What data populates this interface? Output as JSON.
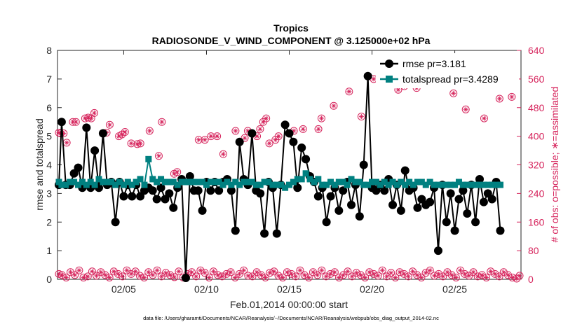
{
  "chart_data": {
    "type": "line",
    "title": "Tropics",
    "subtitle": "RADIOSONDE_V_WIND_COMPONENT @ 3.125000e+02 hPa",
    "xlabel": "Feb.01,2014 00:00:00 start",
    "ylabel_left": "rmse and totalspread",
    "ylabel_right": "# of obs: o=possible; ∗=assimilated",
    "footnote": "data file: /Users/gharamti/Documents/NCAR/Reanalysis/~/Documents/NCAR/Reanalysis/webpub/obs_diag_output_2014-02.nc",
    "xlim": [
      1.0,
      29.0
    ],
    "ylim_left": [
      0,
      8
    ],
    "ylim_right": [
      0,
      640
    ],
    "x_ticks": [
      5,
      10,
      15,
      20,
      25
    ],
    "x_tick_labels": [
      "02/05",
      "02/10",
      "02/15",
      "02/20",
      "02/25"
    ],
    "y_left_ticks": [
      "0",
      "1",
      "2",
      "3",
      "4",
      "5",
      "6",
      "7",
      "8"
    ],
    "y_right_ticks": [
      "0",
      "80",
      "160",
      "240",
      "320",
      "400",
      "480",
      "560",
      "640"
    ],
    "x_step_days": 0.25,
    "legend": [
      "rmse pr=3.181",
      "totalspread pr=3.4289"
    ],
    "legend_position": "top-right",
    "colors": {
      "rmse": "#000000",
      "totalspread": "#008080",
      "obs": "#d6245c",
      "axes": "#262626"
    },
    "series": [
      {
        "name": "rmse pr=3.181",
        "axis": "left",
        "values": [
          3.3,
          5.5,
          3.3,
          3.3,
          3.7,
          3.9,
          3.2,
          5.3,
          3.2,
          4.5,
          3.2,
          5.1,
          3.3,
          3.4,
          2.0,
          3.4,
          2.9,
          3.3,
          2.9,
          3.3,
          2.9,
          3.1,
          3.2,
          3.1,
          2.8,
          3.2,
          2.8,
          3.0,
          2.5,
          3.2,
          3.5,
          0.05,
          3.6,
          3.1,
          3.1,
          2.4,
          3.4,
          3.1,
          3.4,
          3.1,
          3.4,
          3.5,
          3.1,
          1.7,
          4.8,
          3.5,
          3.3,
          5.1,
          3.1,
          3.0,
          1.6,
          3.4,
          3.2,
          1.6,
          3.3,
          5.4,
          5.1,
          4.8,
          3.2,
          4.6,
          4.2,
          3.6,
          3.4,
          2.9,
          3.2,
          2.0,
          2.9,
          3.2,
          2.4,
          3.1,
          3.4,
          2.6,
          3.3,
          2.2,
          4.0,
          7.1,
          3.2,
          3.1,
          3.3,
          3.1,
          3.5,
          2.6,
          3.3,
          2.4,
          3.8,
          3.1,
          3.2,
          2.5,
          2.8,
          2.6,
          2.7,
          3.2,
          1.0,
          3.3,
          2.0,
          3.0,
          1.7,
          2.8,
          3.1,
          2.3,
          3.3,
          2.0,
          3.5,
          2.7,
          3.0,
          2.8,
          3.4,
          1.7
        ]
      },
      {
        "name": "totalspread pr=3.4289",
        "axis": "left",
        "values": [
          3.4,
          3.3,
          3.3,
          3.4,
          3.4,
          3.3,
          3.4,
          3.3,
          3.4,
          3.3,
          3.5,
          3.4,
          3.4,
          3.4,
          3.3,
          3.4,
          3.3,
          3.4,
          3.3,
          3.4,
          3.5,
          3.3,
          4.2,
          3.5,
          3.4,
          3.5,
          3.4,
          3.4,
          3.4,
          3.3,
          3.4,
          3.4,
          3.4,
          3.4,
          3.4,
          3.4,
          3.3,
          3.4,
          3.4,
          3.4,
          3.3,
          3.4,
          3.3,
          3.4,
          3.3,
          3.4,
          3.4,
          3.4,
          3.3,
          3.3,
          3.4,
          3.4,
          3.3,
          3.3,
          3.3,
          3.2,
          3.3,
          3.4,
          3.5,
          3.5,
          3.7,
          3.5,
          3.4,
          3.5,
          3.3,
          3.3,
          3.4,
          3.3,
          3.4,
          3.4,
          3.3,
          3.5,
          3.4,
          3.4,
          3.3,
          3.3,
          3.4,
          3.4,
          3.3,
          3.4,
          3.3,
          3.4,
          3.3,
          3.4,
          3.3,
          3.4,
          3.3,
          3.4,
          3.4,
          3.3,
          3.4,
          3.3,
          3.3,
          3.3,
          3.3,
          3.3,
          3.3,
          3.4,
          3.3,
          3.3,
          3.3,
          3.3,
          3.3,
          3.3,
          3.3,
          3.3,
          3.3,
          3.3
        ]
      },
      {
        "name": "possible observations (upper)",
        "axis": "right",
        "values": [
          410,
          408,
          408,
          382,
          0,
          440,
          440,
          0,
          0,
          450,
          452,
          450,
          465,
          0,
          0,
          0,
          410,
          432,
          0,
          0,
          400,
          405,
          412,
          0,
          380,
          0,
          378,
          380,
          0,
          0,
          415,
          0,
          0,
          345,
          440,
          0,
          0,
          0,
          295,
          300,
          0,
          0,
          0,
          0,
          0,
          0,
          390,
          0,
          390,
          0,
          400,
          0,
          400,
          0,
          350,
          0,
          0,
          0,
          415,
          0,
          0,
          395,
          415,
          0,
          0,
          400,
          420,
          440,
          450,
          380,
          0,
          390,
          400,
          0,
          0,
          0,
          0,
          415,
          0,
          0,
          420,
          0,
          0,
          0,
          0,
          420,
          450,
          0,
          0,
          0,
          485,
          0,
          0,
          0,
          0,
          525,
          0,
          0,
          0,
          455,
          0,
          0,
          0,
          560,
          0,
          0,
          0,
          565,
          0,
          0,
          0,
          530,
          0,
          540,
          0,
          0,
          0,
          535,
          0,
          570,
          0,
          0,
          0,
          0,
          545,
          0,
          0,
          0,
          0,
          520,
          0,
          0,
          0,
          475,
          0,
          0,
          0,
          0,
          0,
          450,
          0,
          0,
          0,
          0,
          505,
          0,
          0,
          0,
          510,
          0,
          0,
          0
        ]
      },
      {
        "name": "possible observations (lower)",
        "axis": "right",
        "values": [
          15,
          12,
          5,
          20,
          12,
          25,
          5,
          8,
          22,
          10,
          20,
          12,
          5,
          22,
          15,
          8,
          25,
          15,
          22,
          10,
          5,
          20,
          12,
          25,
          8,
          18,
          12,
          6,
          22,
          5,
          15,
          20,
          8,
          25,
          18,
          5,
          22,
          12,
          8,
          15,
          20,
          5,
          15,
          25,
          10,
          8,
          20,
          12,
          5,
          18,
          22,
          10,
          5,
          20,
          15,
          8,
          25,
          12,
          5,
          20,
          12,
          25,
          8,
          15,
          20,
          5,
          12,
          22,
          8,
          18,
          12,
          5,
          20,
          15,
          10,
          25,
          8,
          18,
          5,
          20,
          15,
          8,
          22,
          12,
          5,
          18,
          25,
          10,
          15,
          8,
          20,
          12,
          5,
          25,
          15,
          10,
          20,
          8,
          12,
          5,
          22,
          15,
          8,
          20,
          12,
          5,
          2,
          10
        ]
      }
    ]
  }
}
